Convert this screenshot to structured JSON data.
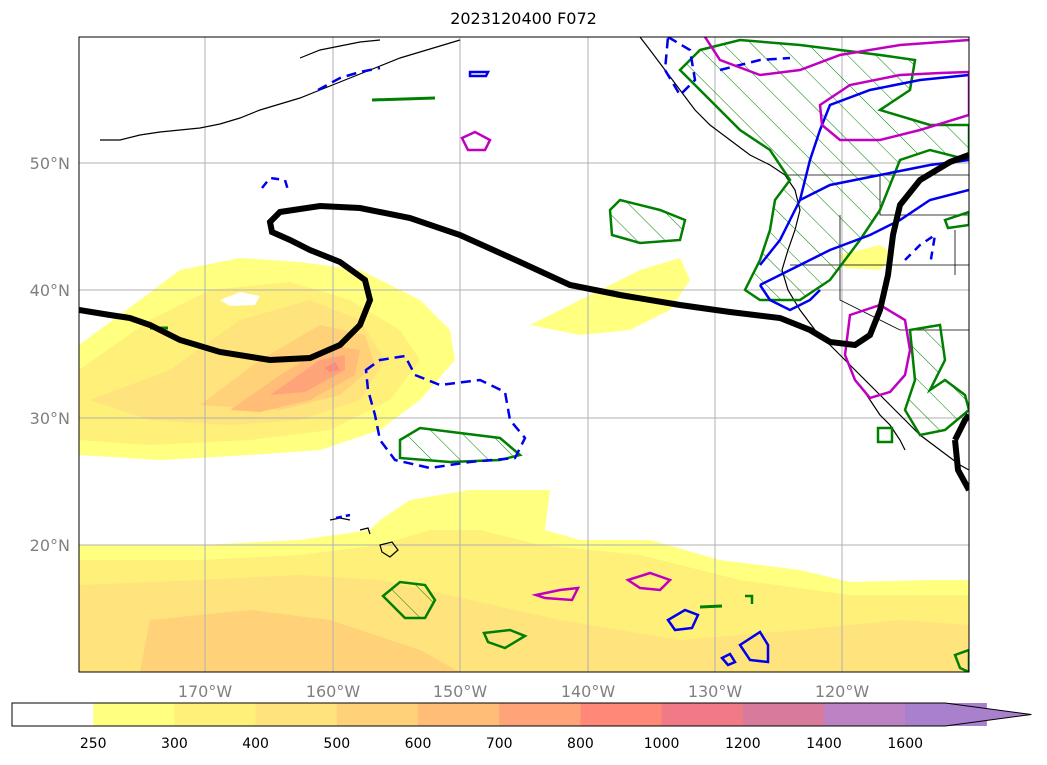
{
  "title": "2023120400 F072",
  "latitude_labels": [
    "50°N",
    "40°N",
    "30°N",
    "20°N"
  ],
  "longitude_labels": [
    "170°W",
    "160°W",
    "150°W",
    "140°W",
    "130°W",
    "120°W"
  ],
  "colorbar": {
    "levels": [
      "250",
      "300",
      "400",
      "500",
      "600",
      "700",
      "800",
      "1000",
      "1200",
      "1400",
      "1600"
    ],
    "colors": [
      "#ffffff",
      "#ffff80",
      "#fff07a",
      "#ffe37c",
      "#ffd27a",
      "#ffbd78",
      "#ffa478",
      "#ff8878",
      "#f07a86",
      "#d87a9c",
      "#bc82c4",
      "#a880cc"
    ],
    "extend": "max"
  },
  "map_colors": {
    "ocean": "#ffffff",
    "jet_stream": "#000000",
    "green_contours": "#008000",
    "blue_contours": "#0000ee",
    "magenta_contours": "#c000c0",
    "grid": "#b0b0b0"
  }
}
